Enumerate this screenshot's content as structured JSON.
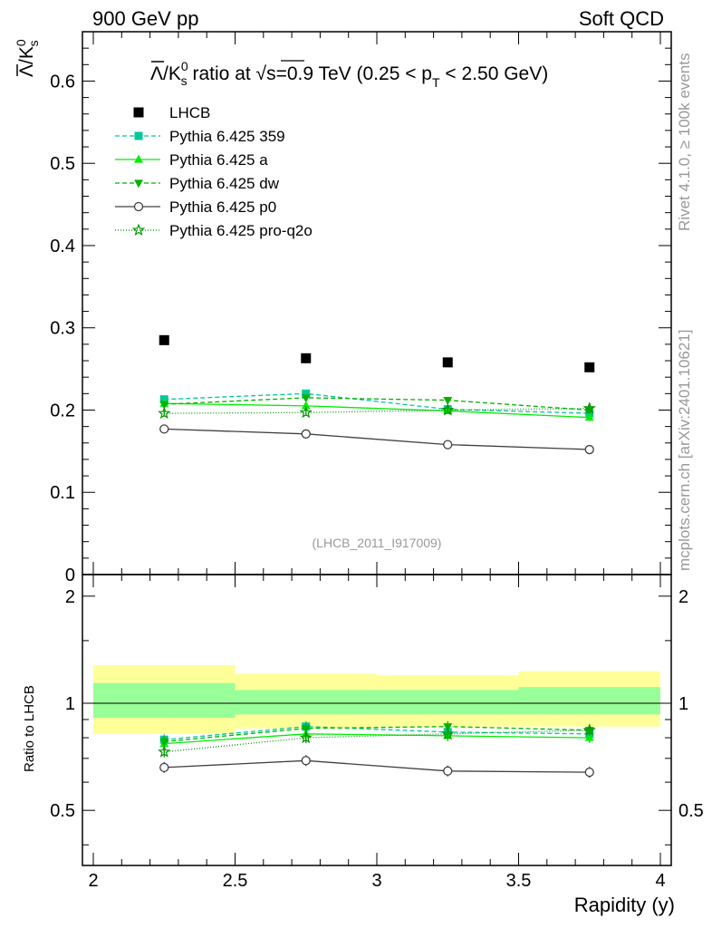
{
  "header": {
    "left": "900 GeV pp",
    "right": "Soft QCD"
  },
  "side": {
    "rivet": "Rivet 4.1.0, ≥ 100k events",
    "mcplots": "mcplots.cern.ch [arXiv:2401.10621]"
  },
  "chart_data": {
    "type": "line",
    "title": "Λ̅/K⁰s ratio at √s=0.9 TeV (0.25 < pT < 2.50 GeV)",
    "title_parts": {
      "lambda": "Λ",
      "k": "/K",
      "k_sup": "0",
      "k_sub": "s",
      "mid": " ratio at ",
      "sqrt": "√",
      "s_text": "s=0.9 TeV (0.25 < p",
      "pt_sub": "T",
      "tail": " < 2.50 GeV)"
    },
    "ylabel_parts": {
      "lambda": "Λ",
      "k": "/K",
      "k_sup": "0",
      "k_sub": "s"
    },
    "watermark": "(LHCB_2011_I917009)",
    "xlabel": "Rapidity (y)",
    "ratio_ylabel": "Ratio to LHCB",
    "xlim": [
      2,
      4
    ],
    "ylim": [
      0,
      0.66
    ],
    "ratio_ylim": [
      0.35,
      2.3
    ],
    "x_ticks": [
      2,
      2.5,
      3,
      3.5,
      4
    ],
    "x_tick_labels": [
      "2",
      "2.5",
      "3",
      "3.5",
      "4"
    ],
    "y_ticks": [
      0,
      0.1,
      0.2,
      0.3,
      0.4,
      0.5,
      0.6
    ],
    "y_tick_labels": [
      "0",
      "0.1",
      "0.2",
      "0.3",
      "0.4",
      "0.5",
      "0.6"
    ],
    "ratio_y_ticks": [
      0.5,
      1,
      2
    ],
    "ratio_y_tick_labels": [
      "0.5",
      "1",
      "2"
    ],
    "x": [
      2.25,
      2.75,
      3.25,
      3.75
    ],
    "bins": [
      [
        2,
        2.5
      ],
      [
        2.5,
        3
      ],
      [
        3,
        3.5
      ],
      [
        3.5,
        4
      ]
    ],
    "data": {
      "name": "LHCB",
      "values": [
        0.285,
        0.263,
        0.258,
        0.252
      ],
      "band_inner": [
        [
          0.91,
          1.14
        ],
        [
          0.93,
          1.09
        ],
        [
          0.93,
          1.09
        ],
        [
          0.93,
          1.11
        ]
      ],
      "band_outer": [
        [
          0.82,
          1.28
        ],
        [
          0.85,
          1.21
        ],
        [
          0.86,
          1.2
        ],
        [
          0.86,
          1.23
        ]
      ]
    },
    "series": [
      {
        "name": "Pythia 6.425 359",
        "color": "#00c898",
        "dash": "5,3",
        "marker": "square",
        "values": [
          0.213,
          0.22,
          0.201,
          0.196
        ],
        "errors": [
          0.004,
          0.004,
          0.004,
          0.004
        ],
        "ratio": [
          0.79,
          0.86,
          0.83,
          0.82
        ]
      },
      {
        "name": "Pythia 6.425 a",
        "color": "#00ee00",
        "dash": "",
        "marker": "triangle-up",
        "values": [
          0.208,
          0.205,
          0.199,
          0.191
        ],
        "errors": [
          0.004,
          0.004,
          0.004,
          0.004
        ],
        "ratio": [
          0.77,
          0.82,
          0.81,
          0.8
        ]
      },
      {
        "name": "Pythia 6.425 dw",
        "color": "#00b400",
        "dash": "5,3",
        "marker": "triangle-down",
        "values": [
          0.207,
          0.215,
          0.212,
          0.2
        ],
        "errors": [
          0.004,
          0.004,
          0.004,
          0.004
        ],
        "ratio": [
          0.78,
          0.85,
          0.86,
          0.84
        ]
      },
      {
        "name": "Pythia 6.425 p0",
        "color": "#404040",
        "dash": "",
        "marker": "circle-open",
        "values": [
          0.177,
          0.171,
          0.158,
          0.152
        ],
        "errors": [
          0.003,
          0.003,
          0.003,
          0.004
        ],
        "ratio": [
          0.66,
          0.69,
          0.645,
          0.64
        ]
      },
      {
        "name": "Pythia 6.425 pro-q2o",
        "color": "#009600",
        "dash": "1,2",
        "marker": "star",
        "values": [
          0.196,
          0.197,
          0.2,
          0.202
        ],
        "errors": [
          0.004,
          0.004,
          0.004,
          0.004
        ],
        "ratio": [
          0.73,
          0.8,
          0.82,
          0.84
        ]
      }
    ]
  }
}
